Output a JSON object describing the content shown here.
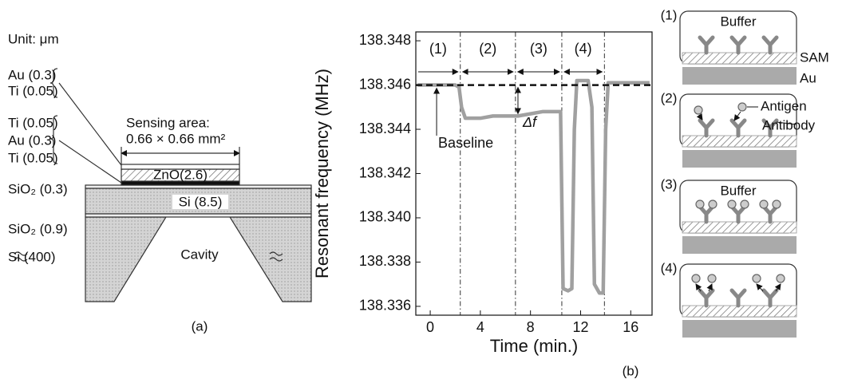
{
  "chart_data": {
    "type": "line",
    "x_label": "Time (min.)",
    "y_label": "Resonant frequency (MHz)",
    "xlim": [
      -1.15,
      17.7
    ],
    "ylim": [
      138.3356,
      138.3484
    ],
    "xticks": [
      0,
      4,
      8,
      12,
      16
    ],
    "yticks": [
      138.336,
      138.338,
      {
        "value": 138.34,
        "label": "138.340"
      },
      138.342,
      138.344,
      138.346,
      138.348
    ],
    "series": [
      {
        "color": "#a0a0a0",
        "x": [
          -1.0,
          0,
          1,
          2,
          2.3,
          2.5,
          2.8,
          4,
          5,
          6,
          7,
          8,
          9,
          10.2,
          10.4,
          10.6,
          11,
          11.3,
          11.5,
          11.7,
          12,
          12.6,
          12.9,
          13.1,
          13.5,
          13.8,
          14.0,
          14.2,
          15,
          16,
          17.5
        ],
        "values": [
          138.346,
          138.346,
          138.346,
          138.346,
          138.3459,
          138.345,
          138.3445,
          138.3445,
          138.3446,
          138.3446,
          138.3446,
          138.3447,
          138.3448,
          138.3448,
          138.3448,
          138.3368,
          138.3367,
          138.3368,
          138.344,
          138.3462,
          138.3462,
          138.3462,
          138.345,
          138.337,
          138.3366,
          138.3366,
          138.344,
          138.3461,
          138.3461,
          138.3461,
          138.3461
        ]
      }
    ],
    "baseline_value": 138.346,
    "region_boundaries": [
      2.4,
      6.8,
      10.5,
      13.9
    ],
    "regions": [
      "(1)",
      "(2)",
      "(3)",
      "(4)"
    ],
    "annotations": [
      "Baseline",
      "Δf"
    ],
    "caption": "(b)"
  },
  "figure_a": {
    "unit": "Unit: μm",
    "layers_top": [
      "Au (0.3)",
      "Ti (0.05)"
    ],
    "layers_bottom": [
      "Ti (0.05)",
      "Au (0.3)",
      "Ti (0.05)"
    ],
    "sio2_top": "SiO₂ (0.3)",
    "sio2_bottom": "SiO₂ (0.9)",
    "si_substrate": "Si (400)",
    "sensing_area": "Sensing area:",
    "sensing_size": "0.66 × 0.66 mm²",
    "zno": "ZnO(2.6)",
    "si_membrane": "Si (8.5)",
    "cavity": "Cavity",
    "caption": "(a)"
  },
  "figure_b": {
    "steps": [
      "(1)",
      "(2)",
      "(3)",
      "(4)"
    ],
    "buffer": "Buffer",
    "sam": "SAM",
    "au": "Au",
    "antigen": "Antigen",
    "antibody": "Antibody"
  }
}
